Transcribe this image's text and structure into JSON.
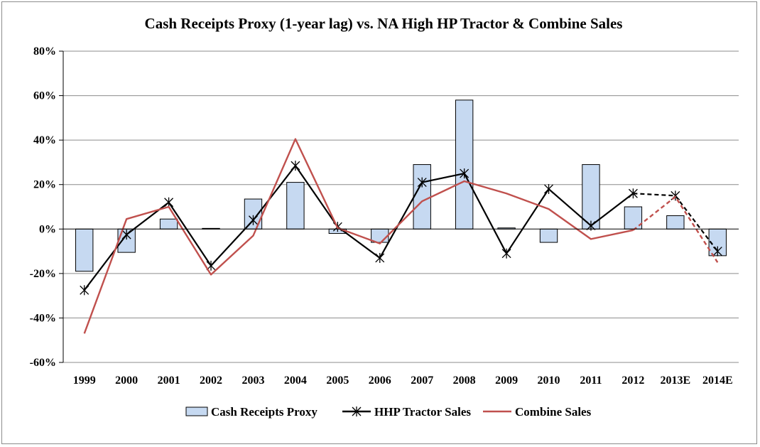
{
  "chart_data": {
    "type": "bar",
    "title": "Cash Receipts Proxy (1-year lag) vs. NA High HP Tractor & Combine Sales",
    "categories": [
      "1999",
      "2000",
      "2001",
      "2002",
      "2003",
      "2004",
      "2005",
      "2006",
      "2007",
      "2008",
      "2009",
      "2010",
      "2011",
      "2012",
      "2013E",
      "2014E"
    ],
    "ylim": [
      -60,
      80
    ],
    "yticks": [
      -60,
      -40,
      -20,
      0,
      20,
      40,
      60,
      80
    ],
    "ytick_suffix": "%",
    "grid": true,
    "legend_position": "bottom",
    "estimate_categories": [
      "2013E",
      "2014E"
    ],
    "series": [
      {
        "name": "Cash Receipts Proxy",
        "kind": "bar",
        "color": "#c6d9f1",
        "edge_color": "#000000",
        "values": [
          -19,
          -10.5,
          4.5,
          0.3,
          13.5,
          21,
          -2,
          -6,
          29,
          58,
          0.5,
          -6,
          29,
          10,
          6,
          -12
        ]
      },
      {
        "name": "HHP Tractor Sales",
        "kind": "line",
        "marker": "asterisk",
        "color": "#000000",
        "values": [
          -27.5,
          -2.5,
          12,
          -16.5,
          4,
          28.5,
          1,
          -13,
          21,
          25,
          -11,
          18,
          1.5,
          16,
          15,
          -10
        ]
      },
      {
        "name": "Combine Sales",
        "kind": "line",
        "color": "#c0504d",
        "values": [
          -47,
          4.5,
          10,
          -20.5,
          -3,
          40.5,
          0.5,
          -6.5,
          12.5,
          21.5,
          16,
          9,
          -4.5,
          -0.5,
          14.5,
          -15
        ]
      }
    ]
  }
}
